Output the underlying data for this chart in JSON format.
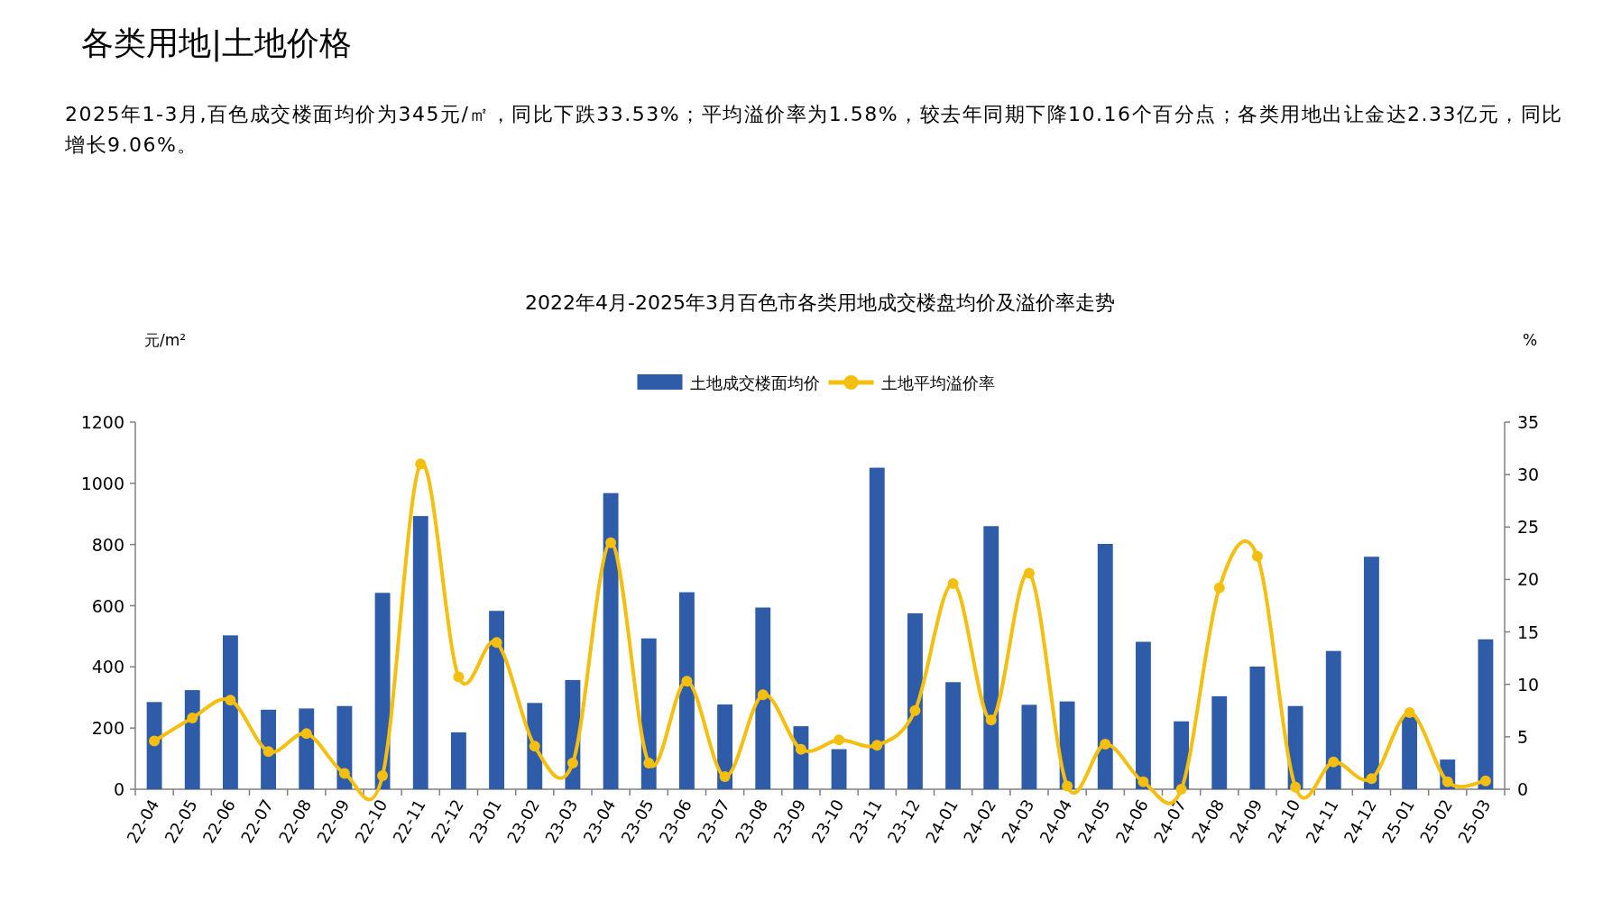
{
  "chart_data": {
    "type": "bar",
    "title": "各类用地|土地价格",
    "subtitle": "2022年4月-2025年3月百色市各类用地成交楼盘均价及溢价率走势",
    "annotations": [
      "2025年1-3月,百色成交楼面均价为345元/㎡，同比下跌33.53%；平均溢价率为1.58%，较去年同期下降10.16个百分点；各类用地出让金达2.33亿元，同比增长9.06%。"
    ],
    "ylabel": "元/m²",
    "y2label": "%",
    "categories": [
      "22-04",
      "22-05",
      "22-06",
      "22-07",
      "22-08",
      "22-09",
      "22-10",
      "22-11",
      "22-12",
      "23-01",
      "23-02",
      "23-03",
      "23-04",
      "23-05",
      "23-06",
      "23-07",
      "23-08",
      "23-09",
      "23-10",
      "23-11",
      "23-12",
      "24-01",
      "24-02",
      "24-03",
      "24-04",
      "24-05",
      "24-06",
      "24-07",
      "24-08",
      "24-09",
      "24-10",
      "24-11",
      "24-12",
      "25-01",
      "25-02",
      "25-03"
    ],
    "series": [
      {
        "name": "土地成交楼面均价",
        "color": "#2e5ca8",
        "values": [
          285,
          324,
          503,
          260,
          264,
          272,
          642,
          893,
          186,
          583,
          282,
          357,
          968,
          493,
          644,
          277,
          594,
          206,
          131,
          1051,
          575,
          350,
          860,
          276,
          287,
          802,
          482,
          222,
          304,
          401,
          272,
          452,
          760,
          240,
          97,
          490
        ]
      },
      {
        "name": "土地平均溢价率",
        "type": "line",
        "axis": "y2",
        "color": "#f5bf0f",
        "values": [
          4.6,
          6.8,
          8.5,
          3.6,
          5.3,
          1.5,
          1.3,
          31.0,
          10.7,
          14.0,
          4.1,
          2.5,
          23.5,
          2.5,
          10.3,
          1.2,
          9.0,
          3.8,
          4.7,
          4.2,
          7.5,
          19.6,
          6.6,
          20.6,
          0.3,
          4.3,
          0.7,
          0,
          19.2,
          22.2,
          0.2,
          2.6,
          1.0,
          7.3,
          0.7,
          0.8
        ]
      }
    ],
    "ylim": [
      0,
      1200
    ],
    "yticks": [
      0,
      200,
      400,
      600,
      800,
      1000,
      1200
    ],
    "y2lim": [
      0,
      35
    ],
    "y2ticks": [
      0,
      5,
      10,
      15,
      20,
      25,
      30,
      35
    ],
    "legend": "top",
    "marker": "circle",
    "line_style": "solid",
    "grid": false
  }
}
